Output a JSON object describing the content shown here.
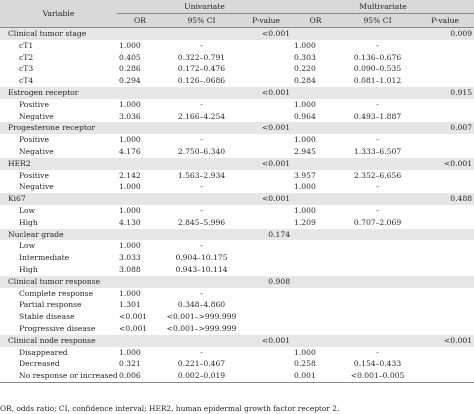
{
  "header": {
    "variable": "Variable",
    "univariate": "Univariate",
    "multivariate": "Multivariate",
    "or": "OR",
    "ci": "95% CI",
    "pvalue": "P-value"
  },
  "rows": [
    {
      "type": "group",
      "label": "Clinical tumor stage",
      "u_or": "",
      "u_ci": "",
      "u_p": "<0.001",
      "m_or": "",
      "m_ci": "",
      "m_p": "0.009"
    },
    {
      "type": "sub",
      "label": "cT1",
      "u_or": "1.000",
      "u_ci": "-",
      "u_p": "",
      "m_or": "1.000",
      "m_ci": "-",
      "m_p": ""
    },
    {
      "type": "sub",
      "label": "cT2",
      "u_or": "0.405",
      "u_ci": "0.322–0.791",
      "u_p": "",
      "m_or": "0.303",
      "m_ci": "0.136–0.676",
      "m_p": ""
    },
    {
      "type": "sub",
      "label": "cT3",
      "u_or": "0.286",
      "u_ci": "0.172–0.476",
      "u_p": "",
      "m_or": "0.220",
      "m_ci": "0.090–0.535",
      "m_p": ""
    },
    {
      "type": "sub",
      "label": "cT4",
      "u_or": "0.294",
      "u_ci": "0.126–.0686",
      "u_p": "",
      "m_or": "0.284",
      "m_ci": "0.081–1.012",
      "m_p": ""
    },
    {
      "type": "group",
      "label": "Estrogen receptor",
      "u_or": "",
      "u_ci": "",
      "u_p": "<0.001",
      "m_or": "",
      "m_ci": "",
      "m_p": "0.915"
    },
    {
      "type": "sub",
      "label": "Positive",
      "u_or": "1.000",
      "u_ci": "-",
      "u_p": "",
      "m_or": "1.000",
      "m_ci": "-",
      "m_p": ""
    },
    {
      "type": "sub",
      "label": "Negative",
      "u_or": "3.036",
      "u_ci": "2.166–4.254",
      "u_p": "",
      "m_or": "0.964",
      "m_ci": "0.493–1.887",
      "m_p": ""
    },
    {
      "type": "group",
      "label": "Progesterone receptor",
      "u_or": "",
      "u_ci": "",
      "u_p": "<0.001",
      "m_or": "",
      "m_ci": "",
      "m_p": "0.007"
    },
    {
      "type": "sub",
      "label": "Positive",
      "u_or": "1.000",
      "u_ci": "-",
      "u_p": "",
      "m_or": "1.000",
      "m_ci": "-",
      "m_p": ""
    },
    {
      "type": "sub",
      "label": "Negative",
      "u_or": "4.176",
      "u_ci": "2.750–6.340",
      "u_p": "",
      "m_or": "2.945",
      "m_ci": "1.333–6.507",
      "m_p": ""
    },
    {
      "type": "group",
      "label": "HER2",
      "u_or": "",
      "u_ci": "",
      "u_p": "<0.001",
      "m_or": "",
      "m_ci": "",
      "m_p": "<0.001"
    },
    {
      "type": "sub",
      "label": "Positive",
      "u_or": "2.142",
      "u_ci": "1.563–2.934",
      "u_p": "",
      "m_or": "3.957",
      "m_ci": "2.352–6.656",
      "m_p": ""
    },
    {
      "type": "sub",
      "label": "Negative",
      "u_or": "1.000",
      "u_ci": "-",
      "u_p": "",
      "m_or": "1.000",
      "m_ci": "-",
      "m_p": ""
    },
    {
      "type": "group",
      "label": "Ki67",
      "u_or": "",
      "u_ci": "",
      "u_p": "<0.001",
      "m_or": "",
      "m_ci": "",
      "m_p": "0.488"
    },
    {
      "type": "sub",
      "label": "Low",
      "u_or": "1.000",
      "u_ci": "-",
      "u_p": "",
      "m_or": "1.000",
      "m_ci": "-",
      "m_p": ""
    },
    {
      "type": "sub",
      "label": "High",
      "u_or": "4.130",
      "u_ci": "2.845–5.996",
      "u_p": "",
      "m_or": "1.209",
      "m_ci": "0.707–2.069",
      "m_p": ""
    },
    {
      "type": "group",
      "label": "Nuclear grade",
      "u_or": "",
      "u_ci": "",
      "u_p": "0.174",
      "m_or": "",
      "m_ci": "",
      "m_p": ""
    },
    {
      "type": "sub",
      "label": "Low",
      "u_or": "1.000",
      "u_ci": "-",
      "u_p": "",
      "m_or": "",
      "m_ci": "",
      "m_p": ""
    },
    {
      "type": "sub",
      "label": "Intermediate",
      "u_or": "3.033",
      "u_ci": "0.904–10.175",
      "u_p": "",
      "m_or": "",
      "m_ci": "",
      "m_p": ""
    },
    {
      "type": "sub",
      "label": "High",
      "u_or": "3.088",
      "u_ci": "0.943–10.114",
      "u_p": "",
      "m_or": "",
      "m_ci": "",
      "m_p": ""
    },
    {
      "type": "group",
      "label": "Clinical tumor response",
      "u_or": "",
      "u_ci": "",
      "u_p": "0.908",
      "m_or": "",
      "m_ci": "",
      "m_p": ""
    },
    {
      "type": "sub",
      "label": "Complete response",
      "u_or": "1.000",
      "u_ci": "-",
      "u_p": "",
      "m_or": "",
      "m_ci": "",
      "m_p": ""
    },
    {
      "type": "sub",
      "label": "Partial response",
      "u_or": "1.301",
      "u_ci": "0.348–4.860",
      "u_p": "",
      "m_or": "",
      "m_ci": "",
      "m_p": ""
    },
    {
      "type": "sub",
      "label": "Stable disease",
      "u_or": "<0.001",
      "u_ci": "<0.001–>999.999",
      "u_p": "",
      "m_or": "",
      "m_ci": "",
      "m_p": ""
    },
    {
      "type": "sub",
      "label": "Progressive disease",
      "u_or": "<0.001",
      "u_ci": "<0.001–>999.999",
      "u_p": "",
      "m_or": "",
      "m_ci": "",
      "m_p": ""
    },
    {
      "type": "group",
      "label": "Clinical node response",
      "u_or": "",
      "u_ci": "",
      "u_p": "<0.001",
      "m_or": "",
      "m_ci": "",
      "m_p": "<0.001"
    },
    {
      "type": "sub",
      "label": "Disappeared",
      "u_or": "1.000",
      "u_ci": "-",
      "u_p": "",
      "m_or": "1.000",
      "m_ci": "-",
      "m_p": ""
    },
    {
      "type": "sub",
      "label": "Decreased",
      "u_or": "0.321",
      "u_ci": "0.221–0.467",
      "u_p": "",
      "m_or": "0.258",
      "m_ci": "0.154–0.433",
      "m_p": ""
    },
    {
      "type": "sub",
      "label": "No response or increased",
      "u_or": "0.006",
      "u_ci": "0.002–0.019",
      "u_p": "",
      "m_or": "0.001",
      "m_ci": "<0.001–0.005",
      "m_p": ""
    }
  ],
  "footnote": "OR, odds ratio; CI, confidence interval; HER2, human epidermal growth factor receptor 2."
}
